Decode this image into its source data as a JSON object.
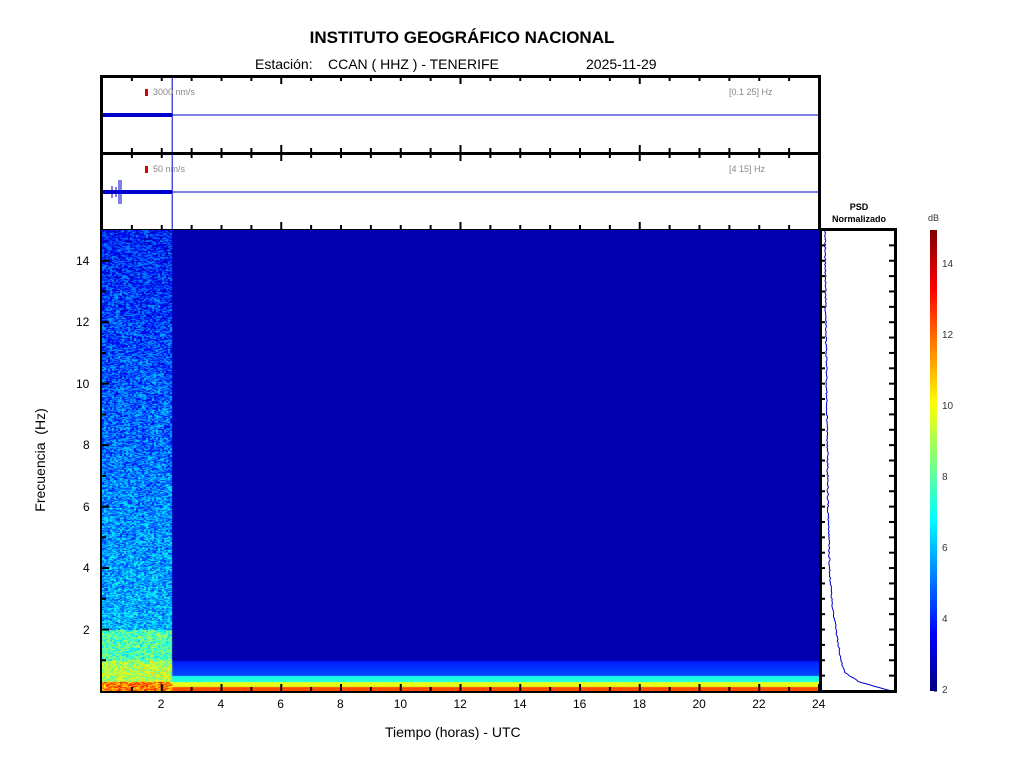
{
  "header": {
    "title": "INSTITUTO GEOGRÁFICO NACIONAL",
    "station_label": "Estación:",
    "station": "CCAN ( HHZ ) - TENERIFE",
    "date": "2025-11-29"
  },
  "traces": [
    {
      "scale": "3000 nm/s",
      "band": "[0.1 25] Hz"
    },
    {
      "scale": "50 nm/s",
      "band": "[4 15] Hz"
    }
  ],
  "psd": {
    "title_line1": "PSD",
    "title_line2": "Normalizado"
  },
  "colorbar": {
    "unit": "dB",
    "range": [
      2,
      15
    ],
    "ticks": [
      "2",
      "4",
      "6",
      "8",
      "10",
      "12",
      "14"
    ]
  },
  "colors": {
    "trace": "#0000cc",
    "scale_marker": "#dd0000",
    "background_spec": "#00008f"
  },
  "chart_data": {
    "type": "heatmap",
    "title": "INSTITUTO GEOGRÁFICO NACIONAL",
    "xlabel": "Tiempo (horas) - UTC",
    "ylabel": "Frecuencia  (Hz)",
    "xlim": [
      0,
      24
    ],
    "ylim": [
      0,
      15
    ],
    "xticks": [
      "2",
      "4",
      "6",
      "8",
      "10",
      "12",
      "14",
      "16",
      "18",
      "20",
      "22",
      "24"
    ],
    "yticks": [
      "2",
      "4",
      "6",
      "8",
      "10",
      "12",
      "14"
    ],
    "data_end_hour": 2.35,
    "psd_profile": {
      "freq": [
        0,
        0.3,
        0.6,
        1,
        2,
        3,
        4,
        5,
        6,
        8,
        10,
        12,
        14,
        15
      ],
      "value": [
        0.95,
        0.5,
        0.3,
        0.25,
        0.18,
        0.12,
        0.09,
        0.08,
        0.07,
        0.06,
        0.05,
        0.04,
        0.03,
        0.03
      ]
    }
  }
}
